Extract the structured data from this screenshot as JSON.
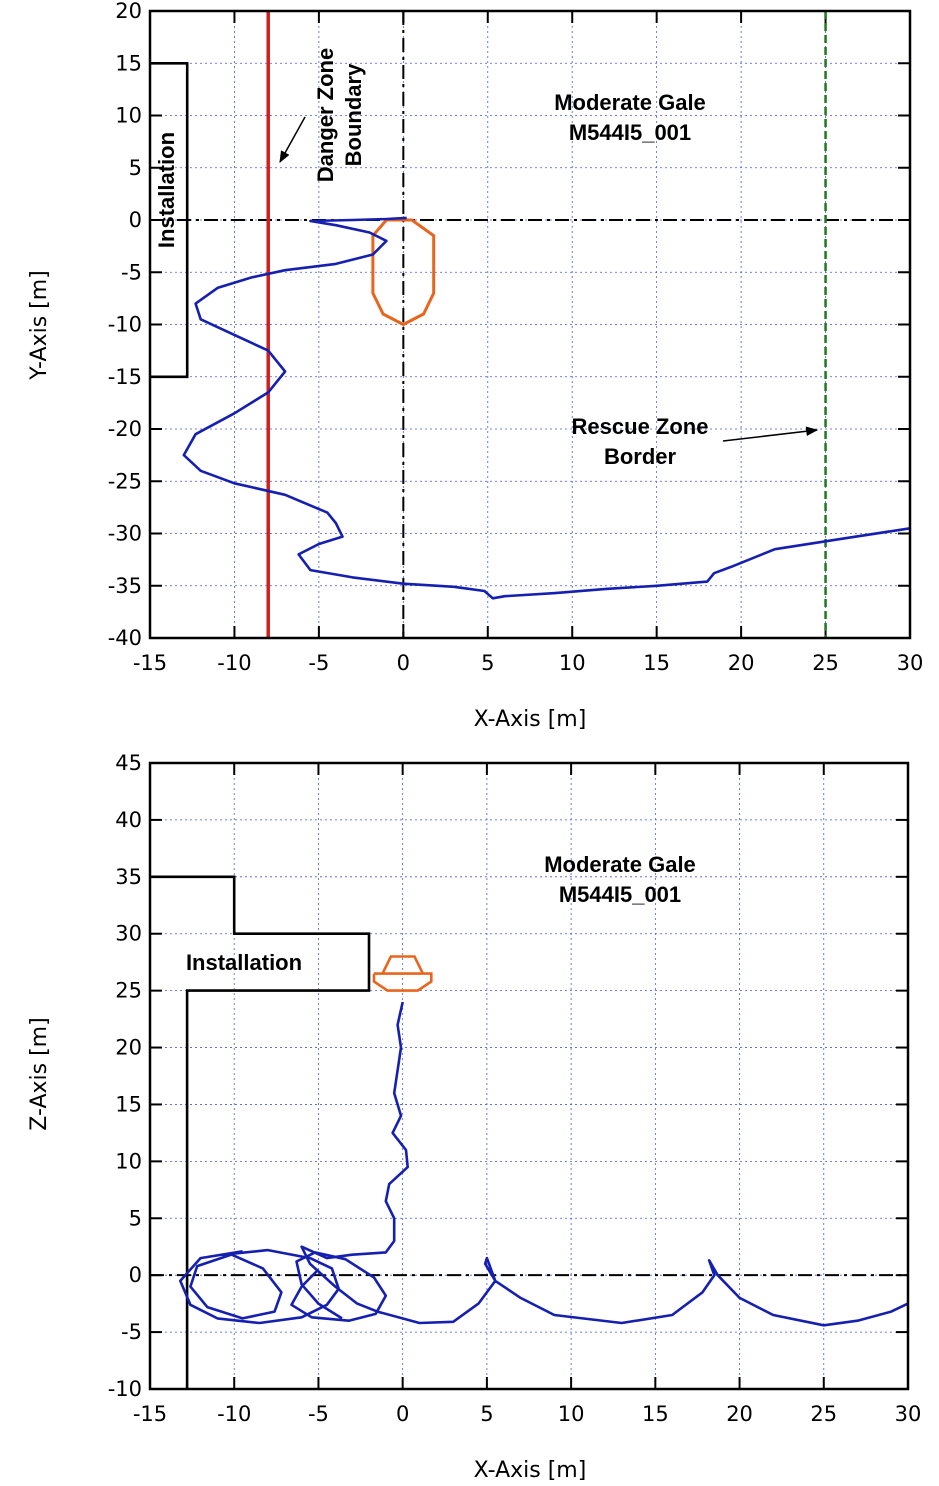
{
  "chart_data": [
    {
      "type": "line",
      "id": "xy",
      "xlabel": "X-Axis [m]",
      "ylabel": "Y-Axis [m]",
      "xlim": [
        -15,
        30
      ],
      "ylim": [
        -40,
        20
      ],
      "xticks": [
        -15,
        -10,
        -5,
        0,
        5,
        10,
        15,
        20,
        25,
        30
      ],
      "yticks": [
        20,
        15,
        10,
        5,
        0,
        -5,
        -10,
        -15,
        -20,
        -25,
        -30,
        -35,
        -40
      ],
      "grid": true,
      "title_lines": [
        "Moderate Gale",
        "M544I5_001"
      ],
      "installation_label": "Installation",
      "danger_zone": {
        "x": -8,
        "label_lines": [
          "Danger Zone",
          "Boundary"
        ],
        "color": "#d01f1f"
      },
      "rescue_zone": {
        "x": 25,
        "label_lines": [
          "Rescue Zone",
          "Border"
        ],
        "color": "#1e7a1e"
      },
      "installation_outline": [
        [
          -15,
          15
        ],
        [
          -12.8,
          15
        ],
        [
          -12.8,
          -15
        ],
        [
          -15,
          -15
        ]
      ],
      "boat_outline": [
        [
          -1,
          0
        ],
        [
          0.5,
          0
        ],
        [
          1.8,
          -1.5
        ],
        [
          1.8,
          -7
        ],
        [
          1.2,
          -9
        ],
        [
          0,
          -10
        ],
        [
          -1.2,
          -9
        ],
        [
          -1.8,
          -7
        ],
        [
          -1.8,
          -1.5
        ],
        [
          -1,
          0
        ]
      ],
      "series": [
        {
          "name": "trajectory",
          "color": "#1520b0",
          "points": [
            [
              0.2,
              0.2
            ],
            [
              -1,
              0.1
            ],
            [
              -3,
              0
            ],
            [
              -5.5,
              -0.1
            ],
            [
              -4,
              -0.5
            ],
            [
              -2,
              -1.2
            ],
            [
              -1,
              -2
            ],
            [
              -1.8,
              -3.3
            ],
            [
              -4,
              -4.2
            ],
            [
              -7,
              -4.8
            ],
            [
              -9,
              -5.5
            ],
            [
              -11,
              -6.5
            ],
            [
              -12.3,
              -8
            ],
            [
              -12,
              -9.5
            ],
            [
              -10,
              -11
            ],
            [
              -8,
              -12.5
            ],
            [
              -7,
              -14.5
            ],
            [
              -8,
              -16.5
            ],
            [
              -10,
              -18.5
            ],
            [
              -12.3,
              -20.5
            ],
            [
              -13,
              -22.5
            ],
            [
              -12,
              -24
            ],
            [
              -10,
              -25.2
            ],
            [
              -7,
              -26.3
            ],
            [
              -4.5,
              -28
            ],
            [
              -4,
              -29
            ],
            [
              -3.6,
              -30.3
            ],
            [
              -5,
              -31
            ],
            [
              -6.2,
              -32
            ],
            [
              -5.5,
              -33.5
            ],
            [
              -3,
              -34.2
            ],
            [
              0,
              -34.8
            ],
            [
              3,
              -35.1
            ],
            [
              4.8,
              -35.5
            ],
            [
              5.3,
              -36.2
            ],
            [
              6,
              -36
            ],
            [
              9,
              -35.7
            ],
            [
              12,
              -35.3
            ],
            [
              15,
              -35
            ],
            [
              18,
              -34.6
            ],
            [
              18.4,
              -33.8
            ],
            [
              19.4,
              -33.2
            ],
            [
              22,
              -31.5
            ],
            [
              26,
              -30.5
            ],
            [
              30,
              -29.5
            ]
          ]
        }
      ]
    },
    {
      "type": "line",
      "id": "xz",
      "xlabel": "X-Axis [m]",
      "ylabel": "Z-Axis [m]",
      "xlim": [
        -15,
        30
      ],
      "ylim": [
        -10,
        45
      ],
      "xticks": [
        -15,
        -10,
        -5,
        0,
        5,
        10,
        15,
        20,
        25,
        30
      ],
      "yticks": [
        45,
        40,
        35,
        30,
        25,
        20,
        15,
        10,
        5,
        0,
        -5,
        -10
      ],
      "grid": true,
      "title_lines": [
        "Moderate Gale",
        "M544I5_001"
      ],
      "installation_label": "Installation",
      "installation_outline": [
        [
          -15,
          35
        ],
        [
          -10,
          35
        ],
        [
          -10,
          30
        ],
        [
          -2,
          30
        ],
        [
          -2,
          25
        ],
        [
          -12.8,
          25
        ],
        [
          -12.8,
          -10
        ]
      ],
      "boat_outline_hull": [
        [
          -1.7,
          26.5
        ],
        [
          1.7,
          26.5
        ],
        [
          1.7,
          25.8
        ],
        [
          0.9,
          25
        ],
        [
          -0.9,
          25
        ],
        [
          -1.7,
          25.8
        ],
        [
          -1.7,
          26.5
        ]
      ],
      "boat_outline_top": [
        [
          -1.2,
          26.5
        ],
        [
          -0.7,
          28
        ],
        [
          0.7,
          28
        ],
        [
          1.2,
          26.5
        ]
      ],
      "series": [
        {
          "name": "trajectory",
          "color": "#1520b0",
          "points": [
            [
              0,
              24
            ],
            [
              -0.3,
              22
            ],
            [
              -0.1,
              20
            ],
            [
              -0.3,
              18
            ],
            [
              -0.5,
              16
            ],
            [
              -0.1,
              14
            ],
            [
              -0.6,
              12.5
            ],
            [
              0.2,
              11
            ],
            [
              0.3,
              9.5
            ],
            [
              -0.8,
              8
            ],
            [
              -1,
              6.5
            ],
            [
              -0.5,
              5
            ],
            [
              -0.5,
              3
            ],
            [
              -1,
              2
            ],
            [
              -3,
              1.8
            ],
            [
              -4.5,
              1.5
            ],
            [
              -6,
              2.5
            ],
            [
              -5.5,
              1
            ],
            [
              -4,
              -1
            ],
            [
              -2.7,
              -2.5
            ],
            [
              -1.5,
              -3.2
            ],
            [
              1,
              -4.2
            ],
            [
              3,
              -4.1
            ],
            [
              4.5,
              -2.5
            ],
            [
              5.5,
              -0.5
            ],
            [
              5,
              1.5
            ],
            [
              4.9,
              1
            ],
            [
              5.5,
              -0.5
            ],
            [
              7,
              -2
            ],
            [
              9,
              -3.5
            ],
            [
              13,
              -4.2
            ],
            [
              16,
              -3.5
            ],
            [
              17.8,
              -1.5
            ],
            [
              18.5,
              0
            ],
            [
              18.2,
              1.3
            ],
            [
              18.7,
              0
            ],
            [
              20,
              -2
            ],
            [
              22,
              -3.5
            ],
            [
              25,
              -4.4
            ],
            [
              27,
              -4
            ],
            [
              29,
              -3.2
            ],
            [
              30,
              -2.5
            ]
          ]
        },
        {
          "name": "loop-1",
          "color": "#1520b0",
          "points": [
            [
              -5,
              0.5
            ],
            [
              -6,
              -1
            ],
            [
              -6.6,
              -2.6
            ],
            [
              -5.4,
              -3.7
            ],
            [
              -3.2,
              -4
            ],
            [
              -1.6,
              -3.4
            ],
            [
              -1,
              -1.8
            ],
            [
              -1.7,
              -0.2
            ],
            [
              -3.4,
              1.4
            ],
            [
              -5.2,
              2
            ],
            [
              -6.3,
              1.2
            ],
            [
              -6,
              -0.8
            ],
            [
              -5,
              -2.5
            ],
            [
              -3.6,
              -3.8
            ]
          ]
        },
        {
          "name": "loop-2",
          "color": "#1520b0",
          "points": [
            [
              -9.5,
              2.1
            ],
            [
              -12,
              1.5
            ],
            [
              -13.2,
              -0.5
            ],
            [
              -12.6,
              -2.6
            ],
            [
              -11,
              -3.8
            ],
            [
              -8.5,
              -4.2
            ],
            [
              -6,
              -3.7
            ],
            [
              -4.5,
              -2.6
            ],
            [
              -3.8,
              -1.2
            ],
            [
              -4.2,
              0.6
            ],
            [
              -5.5,
              1.5
            ],
            [
              -8,
              2.2
            ],
            [
              -10,
              1.9
            ],
            [
              -12.2,
              0.8
            ],
            [
              -12.6,
              -1
            ],
            [
              -11.6,
              -2.8
            ],
            [
              -9.5,
              -3.8
            ],
            [
              -7.6,
              -3.2
            ],
            [
              -7.2,
              -1.5
            ],
            [
              -8.3,
              0.6
            ],
            [
              -10.3,
              1.9
            ]
          ]
        }
      ]
    }
  ]
}
